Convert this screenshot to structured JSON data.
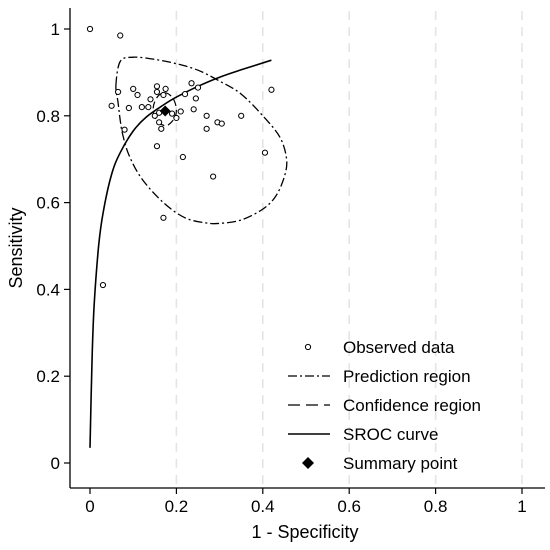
{
  "chart_data": {
    "type": "scatter",
    "xlabel": "1 - Specificity",
    "ylabel": "Sensitivity",
    "xlim": [
      0,
      1
    ],
    "ylim": [
      0,
      1
    ],
    "x_ticks": [
      0,
      0.2,
      0.4,
      0.6,
      0.8,
      1
    ],
    "x_tick_labels": [
      "0",
      "0.2",
      "0.4",
      "0.6",
      "0.8",
      "1"
    ],
    "y_ticks": [
      0,
      0.2,
      0.4,
      0.6,
      0.8,
      1
    ],
    "y_tick_labels": [
      "0",
      "0.2",
      "0.4",
      "0.6",
      "0.8",
      "1"
    ],
    "grid": "vertical dashed",
    "legend_position": "bottom-right",
    "legend": [
      {
        "label": "Observed data",
        "marker": "hollow-circle"
      },
      {
        "label": "Prediction region",
        "marker": "dash-dot-line"
      },
      {
        "label": " Confidence region",
        "marker": "dashed-line"
      },
      {
        "label": "SROC curve",
        "marker": "solid-line"
      },
      {
        "label": "Summary point",
        "marker": "filled-diamond"
      }
    ],
    "observed_data": [
      [
        0.0,
        1.0
      ],
      [
        0.07,
        0.985
      ],
      [
        0.03,
        0.41
      ],
      [
        0.065,
        0.855
      ],
      [
        0.05,
        0.823
      ],
      [
        0.1,
        0.862
      ],
      [
        0.09,
        0.818
      ],
      [
        0.11,
        0.848
      ],
      [
        0.08,
        0.768
      ],
      [
        0.12,
        0.82
      ],
      [
        0.135,
        0.82
      ],
      [
        0.155,
        0.868
      ],
      [
        0.155,
        0.855
      ],
      [
        0.17,
        0.848
      ],
      [
        0.175,
        0.862
      ],
      [
        0.16,
        0.807
      ],
      [
        0.15,
        0.8
      ],
      [
        0.16,
        0.785
      ],
      [
        0.165,
        0.77
      ],
      [
        0.155,
        0.73
      ],
      [
        0.17,
        0.565
      ],
      [
        0.19,
        0.805
      ],
      [
        0.2,
        0.795
      ],
      [
        0.21,
        0.81
      ],
      [
        0.22,
        0.85
      ],
      [
        0.235,
        0.875
      ],
      [
        0.245,
        0.84
      ],
      [
        0.24,
        0.815
      ],
      [
        0.215,
        0.705
      ],
      [
        0.25,
        0.865
      ],
      [
        0.27,
        0.8
      ],
      [
        0.27,
        0.77
      ],
      [
        0.295,
        0.785
      ],
      [
        0.305,
        0.782
      ],
      [
        0.285,
        0.66
      ],
      [
        0.35,
        0.8
      ],
      [
        0.405,
        0.715
      ],
      [
        0.42,
        0.86
      ],
      [
        0.14,
        0.838
      ]
    ],
    "summary_point": [
      0.174,
      0.811
    ],
    "sroc_curve": {
      "x": [
        0.0,
        0.005,
        0.01,
        0.02,
        0.03,
        0.05,
        0.07,
        0.1,
        0.13,
        0.17,
        0.2,
        0.25,
        0.3,
        0.35,
        0.42
      ],
      "y": [
        0.035,
        0.25,
        0.37,
        0.5,
        0.575,
        0.665,
        0.715,
        0.765,
        0.797,
        0.825,
        0.843,
        0.868,
        0.889,
        0.906,
        0.928
      ]
    },
    "confidence_region": {
      "x": [
        0.174,
        0.185,
        0.195,
        0.2,
        0.197,
        0.185,
        0.174,
        0.16,
        0.15,
        0.146,
        0.15,
        0.16,
        0.174
      ],
      "y": [
        0.853,
        0.848,
        0.835,
        0.815,
        0.797,
        0.782,
        0.777,
        0.784,
        0.797,
        0.815,
        0.833,
        0.848,
        0.853
      ]
    },
    "prediction_region": {
      "x": [
        0.06,
        0.07,
        0.1,
        0.15,
        0.2,
        0.25,
        0.3,
        0.35,
        0.4,
        0.44,
        0.455,
        0.45,
        0.43,
        0.4,
        0.35,
        0.3,
        0.27,
        0.22,
        0.17,
        0.12,
        0.09,
        0.075,
        0.07,
        0.065,
        0.06
      ],
      "y": [
        0.87,
        0.925,
        0.935,
        0.93,
        0.92,
        0.905,
        0.88,
        0.85,
        0.8,
        0.75,
        0.7,
        0.66,
        0.615,
        0.585,
        0.56,
        0.552,
        0.553,
        0.565,
        0.6,
        0.655,
        0.71,
        0.76,
        0.79,
        0.83,
        0.87
      ]
    }
  }
}
